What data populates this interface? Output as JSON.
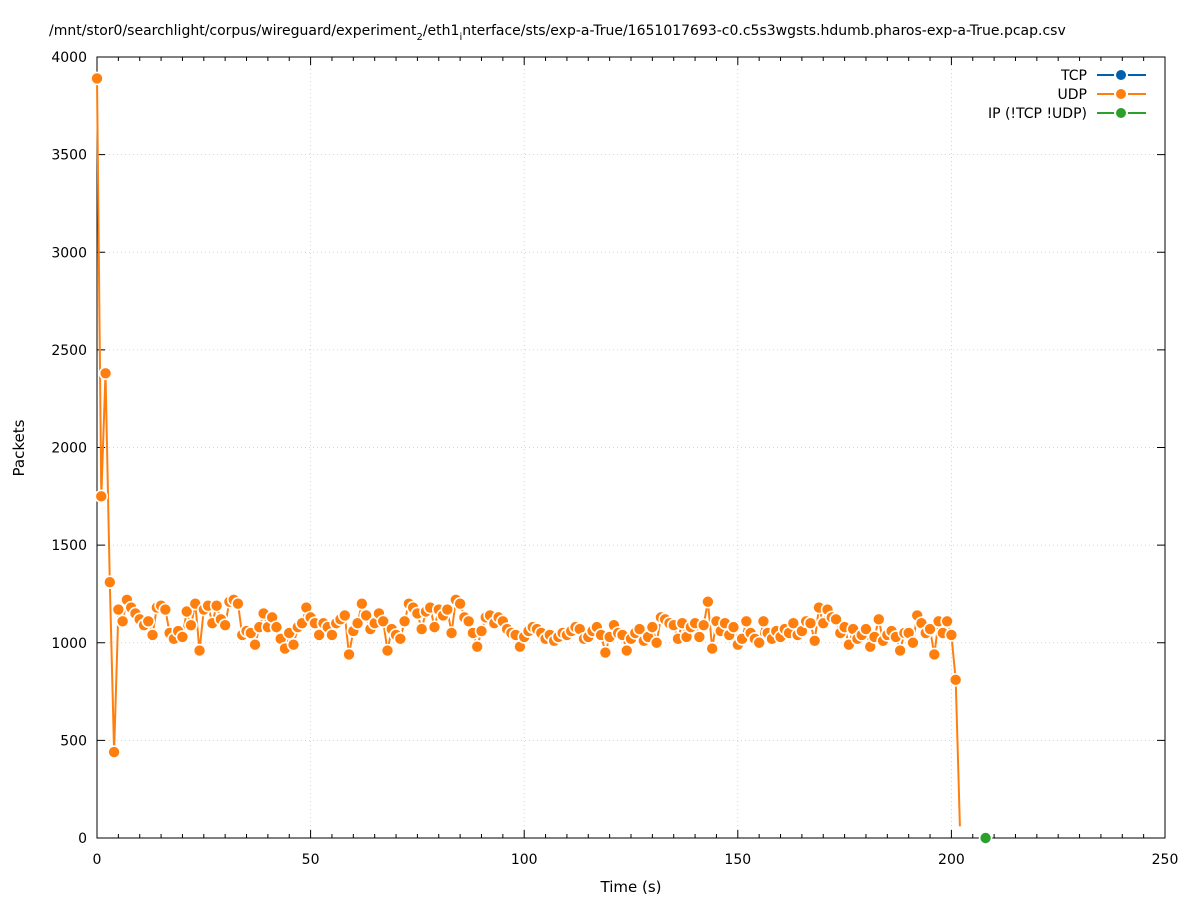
{
  "chart_data": {
    "type": "line",
    "title": "/mnt/stor0/searchlight/corpus/wireguard/experiment",
    "title_sub1": "2",
    "title_mid": "/eth1",
    "title_sub2": "i",
    "title_tail": "nterface/sts/exp-a-True/1651017693-c0.c5s3wgsts.hdumb.pharos-exp-a-True.pcap.csv",
    "xlabel": "Time (s)",
    "ylabel": "Packets",
    "xlim": [
      0,
      250
    ],
    "ylim": [
      0,
      4000
    ],
    "xticks": [
      0,
      50,
      100,
      150,
      200,
      250
    ],
    "yticks": [
      0,
      500,
      1000,
      1500,
      2000,
      2500,
      3000,
      3500,
      4000
    ],
    "grid": true,
    "legend_position": "top-right",
    "series": [
      {
        "name": "TCP",
        "color": "#0060ad",
        "x": [],
        "y": []
      },
      {
        "name": "UDP",
        "color": "#ff7f0e",
        "x": [
          0,
          1,
          2,
          3,
          4,
          5,
          6,
          7,
          8,
          9,
          10,
          11,
          12,
          13,
          14,
          15,
          16,
          17,
          18,
          19,
          20,
          21,
          22,
          23,
          24,
          25,
          26,
          27,
          28,
          29,
          30,
          31,
          32,
          33,
          34,
          35,
          36,
          37,
          38,
          39,
          40,
          41,
          42,
          43,
          44,
          45,
          46,
          47,
          48,
          49,
          50,
          51,
          52,
          53,
          54,
          55,
          56,
          57,
          58,
          59,
          60,
          61,
          62,
          63,
          64,
          65,
          66,
          67,
          68,
          69,
          70,
          71,
          72,
          73,
          74,
          75,
          76,
          77,
          78,
          79,
          80,
          81,
          82,
          83,
          84,
          85,
          86,
          87,
          88,
          89,
          90,
          91,
          92,
          93,
          94,
          95,
          96,
          97,
          98,
          99,
          100,
          101,
          102,
          103,
          104,
          105,
          106,
          107,
          108,
          109,
          110,
          111,
          112,
          113,
          114,
          115,
          116,
          117,
          118,
          119,
          120,
          121,
          122,
          123,
          124,
          125,
          126,
          127,
          128,
          129,
          130,
          131,
          132,
          133,
          134,
          135,
          136,
          137,
          138,
          139,
          140,
          141,
          142,
          143,
          144,
          145,
          146,
          147,
          148,
          149,
          150,
          151,
          152,
          153,
          154,
          155,
          156,
          157,
          158,
          159,
          160,
          161,
          162,
          163,
          164,
          165,
          166,
          167,
          168,
          169,
          170,
          171,
          172,
          173,
          174,
          175,
          176,
          177,
          178,
          179,
          180,
          181,
          182,
          183,
          184,
          185,
          186,
          187,
          188,
          189,
          190,
          191,
          192,
          193,
          194,
          195,
          196,
          197,
          198,
          199,
          200,
          201,
          202
        ],
        "y": [
          3890,
          1750,
          2380,
          1310,
          440,
          1170,
          1110,
          1220,
          1180,
          1150,
          1120,
          1090,
          1110,
          1040,
          1180,
          1190,
          1170,
          1050,
          1020,
          1060,
          1030,
          1160,
          1090,
          1200,
          960,
          1170,
          1190,
          1100,
          1190,
          1120,
          1090,
          1210,
          1220,
          1200,
          1040,
          1060,
          1050,
          990,
          1080,
          1150,
          1080,
          1130,
          1080,
          1020,
          970,
          1050,
          990,
          1080,
          1100,
          1180,
          1130,
          1100,
          1040,
          1100,
          1080,
          1040,
          1100,
          1120,
          1140,
          940,
          1060,
          1100,
          1200,
          1140,
          1070,
          1100,
          1150,
          1110,
          960,
          1070,
          1040,
          1020,
          1110,
          1200,
          1180,
          1150,
          1070,
          1160,
          1180,
          1080,
          1170,
          1140,
          1170,
          1050,
          1220,
          1200,
          1130,
          1110,
          1050,
          980,
          1060,
          1130,
          1140,
          1100,
          1130,
          1110,
          1070,
          1050,
          1040,
          980,
          1030,
          1060,
          1080,
          1070,
          1050,
          1020,
          1040,
          1010,
          1030,
          1050,
          1040,
          1060,
          1080,
          1070,
          1020,
          1030,
          1060,
          1080,
          1040,
          950,
          1030,
          1090,
          1050,
          1040,
          960,
          1020,
          1050,
          1070,
          1010,
          1030,
          1080,
          1000,
          1130,
          1120,
          1100,
          1090,
          1020,
          1100,
          1030,
          1080,
          1100,
          1030,
          1090,
          1210,
          970,
          1110,
          1060,
          1100,
          1040,
          1080,
          990,
          1020,
          1110,
          1050,
          1020,
          1000,
          1110,
          1050,
          1020,
          1060,
          1030,
          1070,
          1050,
          1100,
          1040,
          1060,
          1110,
          1100,
          1010,
          1180,
          1100,
          1170,
          1130,
          1120,
          1050,
          1080,
          990,
          1070,
          1020,
          1040,
          1070,
          980,
          1030,
          1120,
          1010,
          1040,
          1060,
          1030,
          960,
          1050,
          1050,
          1000,
          1140,
          1100,
          1050,
          1070,
          940,
          1110,
          1050,
          1110,
          1040,
          810,
          60
        ]
      },
      {
        "name": "IP (!TCP  !UDP)",
        "color": "#2ca02c",
        "x": [
          208
        ],
        "y": [
          0
        ]
      }
    ]
  }
}
